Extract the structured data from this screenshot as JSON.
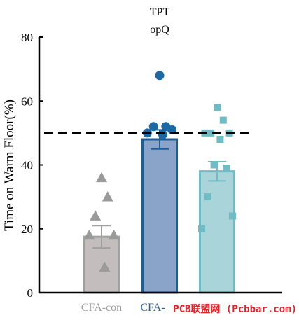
{
  "chart_data": {
    "type": "bar",
    "title_lines": [
      "TPT",
      "opQ"
    ],
    "ylabel": "Time on Warm Floor(%)",
    "ylim": [
      0,
      80
    ],
    "yticks": [
      0,
      20,
      40,
      60,
      80
    ],
    "reference_line": 50,
    "categories": [
      "CFA-con",
      "CFA-",
      ""
    ],
    "category_colors": [
      "#9e9e9e",
      "#2b6196",
      "#6fbcc4"
    ],
    "bars": [
      {
        "value": 17.5,
        "error": 3.5,
        "fill": "#c3bebd",
        "stroke": "#a0a0a0",
        "marker": "triangle",
        "marker_color": "#9a9a9a",
        "points": [
          36,
          30,
          24,
          18,
          18,
          8
        ]
      },
      {
        "value": 48,
        "error": 3,
        "fill": "#8aa3c8",
        "stroke": "#1c5f96",
        "marker": "circle",
        "marker_color": "#1c6aa5",
        "points": [
          68,
          52,
          52,
          51,
          50,
          49.5
        ]
      },
      {
        "value": 38,
        "error": 3,
        "fill": "#a8d4da",
        "stroke": "#6fbcc4",
        "marker": "square",
        "marker_color": "#6fbcc4",
        "points": [
          58,
          54,
          50,
          50,
          50,
          48,
          40,
          39,
          30,
          24,
          20
        ]
      }
    ]
  },
  "watermark": "PCB联盟网 (Pcbbar.com)",
  "colors": {
    "axis": "#000000",
    "reference_line": "#000000",
    "watermark": "#e8202a"
  }
}
